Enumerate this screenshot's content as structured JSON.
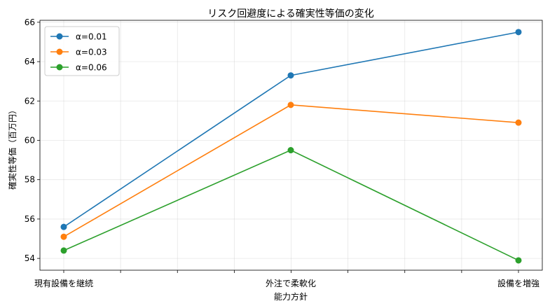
{
  "chart_data": {
    "type": "line",
    "title": "リスク回避度による確実性等価の変化",
    "xlabel": "能力方針",
    "ylabel": "確実性等価（百万円）",
    "categories": [
      "現有設備を継続",
      "外注で柔軟化",
      "設備を増強"
    ],
    "ylim": [
      53.4,
      66.1
    ],
    "yticks": [
      54,
      56,
      58,
      60,
      62,
      64,
      66
    ],
    "x_minor_ticks": 8,
    "grid": true,
    "legend_position": "top-left",
    "series": [
      {
        "name": "α=0.01",
        "color": "#1f77b4",
        "values": [
          55.6,
          63.3,
          65.5
        ]
      },
      {
        "name": "α=0.03",
        "color": "#ff7f0e",
        "values": [
          55.1,
          61.8,
          60.9
        ]
      },
      {
        "name": "α=0.06",
        "color": "#2ca02c",
        "values": [
          54.4,
          59.5,
          53.9
        ]
      }
    ]
  }
}
